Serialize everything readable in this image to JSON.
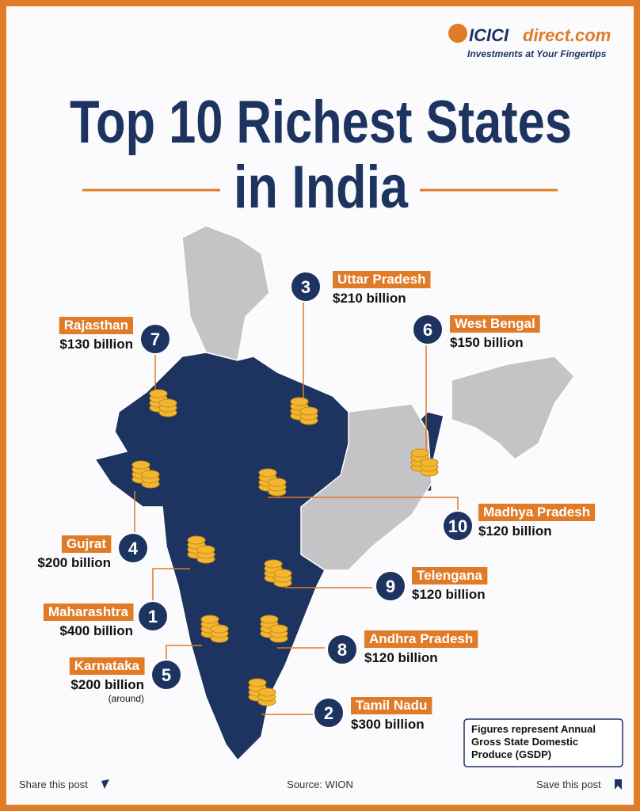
{
  "brand": {
    "name": "ICICI",
    "suffix": "direct.com",
    "tagline": "Investments at Your Fingertips"
  },
  "title": {
    "line1": "Top 10 Richest States",
    "line2": "in India"
  },
  "states": [
    {
      "rank": 3,
      "name": "Uttar Pradesh",
      "value": "$210 billion"
    },
    {
      "rank": 7,
      "name": "Rajasthan",
      "value": "$130 billion"
    },
    {
      "rank": 6,
      "name": "West Bengal",
      "value": "$150 billion"
    },
    {
      "rank": 10,
      "name": "Madhya Pradesh",
      "value": "$120 billion"
    },
    {
      "rank": 4,
      "name": "Gujrat",
      "value": "$200 billion"
    },
    {
      "rank": 9,
      "name": "Telengana",
      "value": "$120 billion"
    },
    {
      "rank": 1,
      "name": "Maharashtra",
      "value": "$400 billion"
    },
    {
      "rank": 8,
      "name": "Andhra Pradesh",
      "value": "$120 billion"
    },
    {
      "rank": 5,
      "name": "Karnataka",
      "value": "$200 billion",
      "note": "(around)"
    },
    {
      "rank": 2,
      "name": "Tamil Nadu",
      "value": "$300 billion"
    }
  ],
  "note": {
    "line1": "Figures represent Annual",
    "line2": "Gross State Domestic",
    "line3": "Produce (GSDP)"
  },
  "footer": {
    "share": "Share this post",
    "source": "Source: WION",
    "save": "Save this post"
  }
}
